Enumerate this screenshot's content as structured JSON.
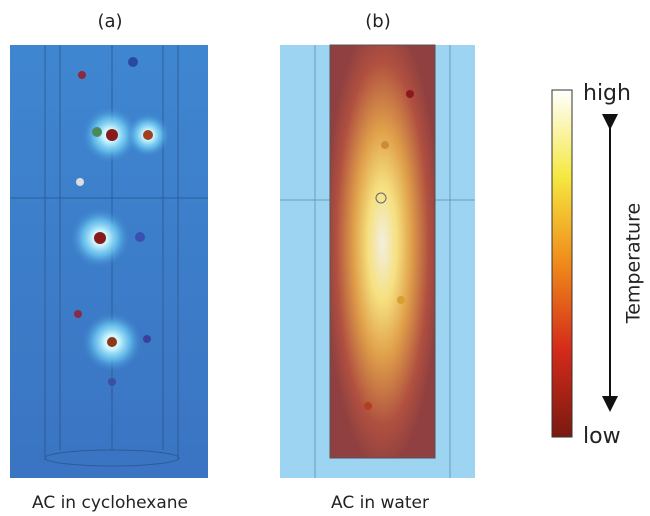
{
  "panels": [
    {
      "label": "(a)",
      "caption": "AC in cyclohexane"
    },
    {
      "label": "(b)",
      "caption": "AC in water"
    }
  ],
  "colorbar": {
    "top_label": "high",
    "bottom_label": "low",
    "axis_label": "Temperature"
  }
}
